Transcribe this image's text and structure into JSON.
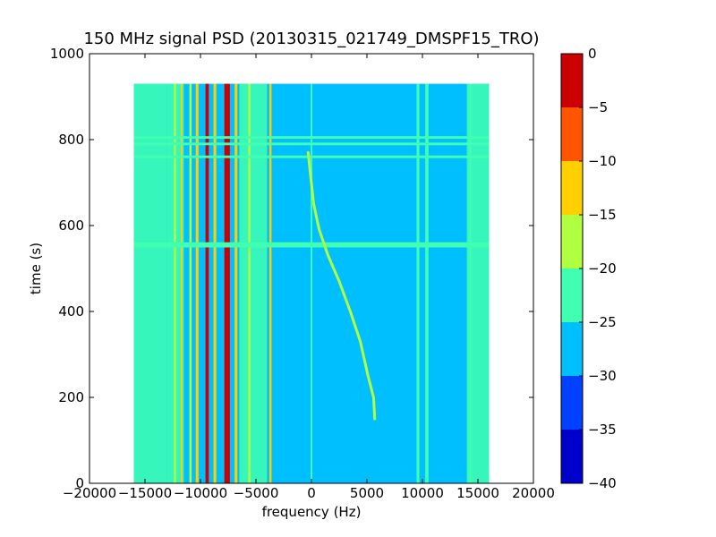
{
  "chart_data": {
    "type": "heatmap",
    "title": "150 MHz signal PSD (20130315_021749_DMSPF15_TRO)",
    "xlabel": "frequency (Hz)",
    "ylabel": "time (s)",
    "xlim": [
      -20000,
      20000
    ],
    "ylim": [
      0,
      1000
    ],
    "xticks": [
      -20000,
      -15000,
      -10000,
      -5000,
      0,
      5000,
      10000,
      15000,
      20000
    ],
    "xtick_labels": [
      "−20000",
      "−15000",
      "−10000",
      "−5000",
      "0",
      "5000",
      "10000",
      "15000",
      "20000"
    ],
    "yticks": [
      0,
      200,
      400,
      600,
      800,
      1000
    ],
    "ytick_labels": [
      "0",
      "200",
      "400",
      "600",
      "800",
      "1000"
    ],
    "data_extent": {
      "freq": [
        -16000,
        16000
      ],
      "time": [
        0,
        930
      ]
    },
    "background_level": -27.5,
    "colorbar": {
      "range": [
        -40,
        0
      ],
      "ticks": [
        0,
        -5,
        -10,
        -15,
        -20,
        -25,
        -30,
        -35,
        -40
      ],
      "tick_labels": [
        "0",
        "−5",
        "−10",
        "−15",
        "−20",
        "−25",
        "−30",
        "−35",
        "−40"
      ],
      "levels": [
        {
          "from": -40,
          "to": -35,
          "color": "#0000cc"
        },
        {
          "from": -35,
          "to": -30,
          "color": "#0040ff"
        },
        {
          "from": -30,
          "to": -25,
          "color": "#00bfff"
        },
        {
          "from": -25,
          "to": -20,
          "color": "#40ffb0"
        },
        {
          "from": -20,
          "to": -15,
          "color": "#b0ff40"
        },
        {
          "from": -15,
          "to": -10,
          "color": "#ffd000"
        },
        {
          "from": -10,
          "to": -5,
          "color": "#ff5500"
        },
        {
          "from": -5,
          "to": 0,
          "color": "#cc0000"
        }
      ]
    },
    "noise_bands": [
      {
        "from": -16000,
        "to": -13000,
        "level": -22.5
      },
      {
        "from": -13000,
        "to": -11500,
        "level": -22.5
      },
      {
        "from": -6500,
        "to": -4000,
        "level": -22.5
      },
      {
        "from": 14000,
        "to": 16000,
        "level": -22.5
      }
    ],
    "carrier_lines": [
      {
        "freq": -12300,
        "width": 200,
        "level": -17.5
      },
      {
        "freq": -11700,
        "width": 150,
        "level": -12.5
      },
      {
        "freq": -10900,
        "width": 200,
        "level": -17.5
      },
      {
        "freq": -10300,
        "width": 250,
        "level": -12.5
      },
      {
        "freq": -9400,
        "width": 300,
        "level": -2.5
      },
      {
        "freq": -8700,
        "width": 250,
        "level": -12.5
      },
      {
        "freq": -7600,
        "width": 500,
        "level": -2.5
      },
      {
        "freq": -6800,
        "width": 250,
        "level": -12.5
      },
      {
        "freq": -5600,
        "width": 200,
        "level": -17.5
      },
      {
        "freq": -3700,
        "width": 200,
        "level": -12.5
      },
      {
        "freq": 0,
        "width": 150,
        "level": -22.5
      },
      {
        "freq": 9600,
        "width": 250,
        "level": -22.5
      },
      {
        "freq": 10400,
        "width": 300,
        "level": -22.5
      },
      {
        "freq": 14300,
        "width": 200,
        "level": -22.5
      }
    ],
    "horizontal_lines": [
      {
        "time": 555,
        "height": 12,
        "level": -22.5
      },
      {
        "time": 760,
        "height": 6,
        "level": -22.5
      },
      {
        "time": 790,
        "height": 6,
        "level": -22.5
      },
      {
        "time": 805,
        "height": 6,
        "level": -22.5
      }
    ],
    "doppler_trace": {
      "level": -17.5,
      "points": [
        {
          "freq": -300,
          "time": 770
        },
        {
          "freq": -100,
          "time": 720
        },
        {
          "freq": 200,
          "time": 650
        },
        {
          "freq": 700,
          "time": 590
        },
        {
          "freq": 1500,
          "time": 530
        },
        {
          "freq": 2500,
          "time": 470
        },
        {
          "freq": 3500,
          "time": 400
        },
        {
          "freq": 4400,
          "time": 330
        },
        {
          "freq": 5100,
          "time": 250
        },
        {
          "freq": 5600,
          "time": 200
        },
        {
          "freq": 5700,
          "time": 150
        }
      ]
    }
  }
}
